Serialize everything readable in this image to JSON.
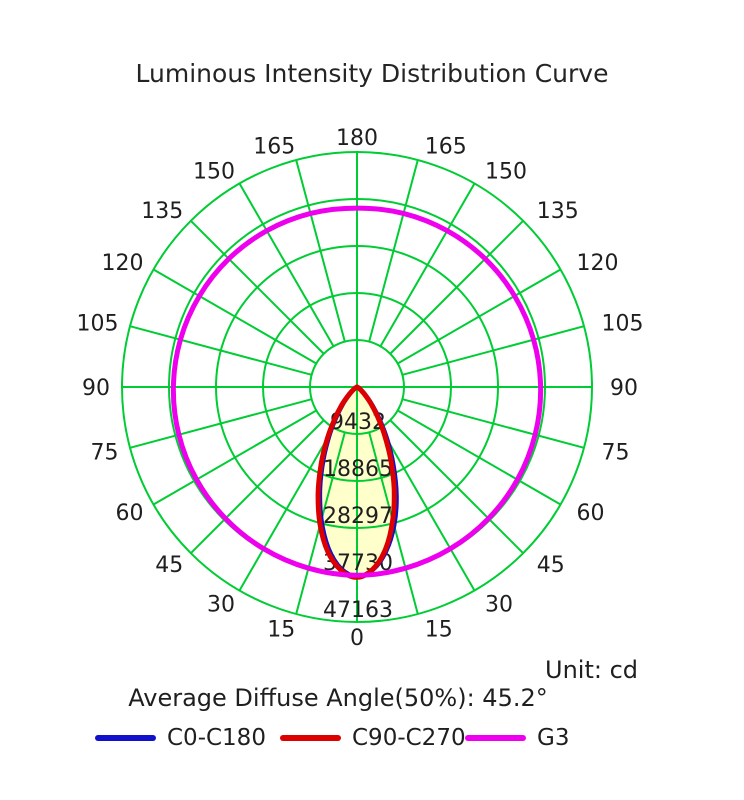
{
  "title": "Luminous Intensity Distribution Curve",
  "footer": {
    "unit_label": "Unit: cd",
    "avg_diffuse_label": "Average Diffuse Angle(50%): 45.2°"
  },
  "chart_data": {
    "type": "line",
    "subtype": "polar-intensity",
    "unit": "cd",
    "r_max": 47163,
    "ring_values": [
      9432,
      18865,
      28297,
      37730,
      47163
    ],
    "ring_labels": [
      "9432",
      "18865",
      "28297",
      "37730",
      "47163"
    ],
    "angle_labels": [
      0,
      15,
      30,
      45,
      60,
      75,
      90,
      105,
      120,
      135,
      150,
      165,
      180
    ],
    "grid_angle_step_deg": 15,
    "grid_rings": 5,
    "grid_color": "#00cc33",
    "fill_color": "#ffffcc",
    "text_color": "#1f1f1f",
    "legend_position": "bottom",
    "series": [
      {
        "name": "C0-C180",
        "color": "#1111cc",
        "stroke_width": 4.5,
        "fill": true,
        "points": [
          [
            -90,
            0
          ],
          [
            -80,
            12
          ],
          [
            -70,
            60
          ],
          [
            -60,
            280
          ],
          [
            -55,
            600
          ],
          [
            -50,
            1200
          ],
          [
            -45,
            2300
          ],
          [
            -40,
            4200
          ],
          [
            -35,
            7000
          ],
          [
            -30,
            10900
          ],
          [
            -25,
            15900
          ],
          [
            -20,
            21700
          ],
          [
            -15,
            27600
          ],
          [
            -10,
            32900
          ],
          [
            -5,
            36600
          ],
          [
            0,
            38000
          ],
          [
            5,
            36800
          ],
          [
            10,
            33500
          ],
          [
            15,
            28800
          ],
          [
            20,
            23200
          ],
          [
            25,
            17300
          ],
          [
            30,
            12100
          ],
          [
            35,
            7800
          ],
          [
            40,
            4800
          ],
          [
            45,
            2700
          ],
          [
            50,
            1400
          ],
          [
            55,
            730
          ],
          [
            60,
            340
          ],
          [
            70,
            78
          ],
          [
            80,
            16
          ],
          [
            90,
            0
          ]
        ]
      },
      {
        "name": "C90-C270",
        "color": "#dd0000",
        "stroke_width": 5,
        "fill": true,
        "points": [
          [
            -90,
            0
          ],
          [
            -80,
            17
          ],
          [
            -70,
            80
          ],
          [
            -60,
            350
          ],
          [
            -55,
            740
          ],
          [
            -50,
            1420
          ],
          [
            -45,
            2700
          ],
          [
            -40,
            4800
          ],
          [
            -35,
            7700
          ],
          [
            -30,
            11900
          ],
          [
            -25,
            17000
          ],
          [
            -20,
            22800
          ],
          [
            -15,
            28600
          ],
          [
            -10,
            33600
          ],
          [
            -5,
            36900
          ],
          [
            0,
            38200
          ],
          [
            5,
            36700
          ],
          [
            10,
            33000
          ],
          [
            15,
            27700
          ],
          [
            20,
            21800
          ],
          [
            25,
            16000
          ],
          [
            30,
            11000
          ],
          [
            35,
            7100
          ],
          [
            40,
            4300
          ],
          [
            45,
            2400
          ],
          [
            50,
            1250
          ],
          [
            55,
            640
          ],
          [
            60,
            295
          ],
          [
            70,
            64
          ],
          [
            80,
            13
          ],
          [
            90,
            0
          ]
        ]
      },
      {
        "name": "G3",
        "color": "#ee00ee",
        "stroke_width": 5,
        "fill": false,
        "closed": true,
        "points": [
          [
            -180,
            35900
          ],
          [
            -165,
            36060
          ],
          [
            -150,
            36220
          ],
          [
            -135,
            36380
          ],
          [
            -120,
            36530
          ],
          [
            -105,
            36690
          ],
          [
            -90,
            36850
          ],
          [
            -75,
            37010
          ],
          [
            -60,
            37170
          ],
          [
            -45,
            37330
          ],
          [
            -30,
            37480
          ],
          [
            -15,
            37640
          ],
          [
            0,
            37800
          ],
          [
            15,
            37640
          ],
          [
            30,
            37480
          ],
          [
            45,
            37330
          ],
          [
            60,
            37170
          ],
          [
            75,
            37010
          ],
          [
            90,
            36850
          ],
          [
            105,
            36690
          ],
          [
            120,
            36530
          ],
          [
            135,
            36380
          ],
          [
            150,
            36220
          ],
          [
            165,
            36060
          ]
        ]
      }
    ]
  }
}
